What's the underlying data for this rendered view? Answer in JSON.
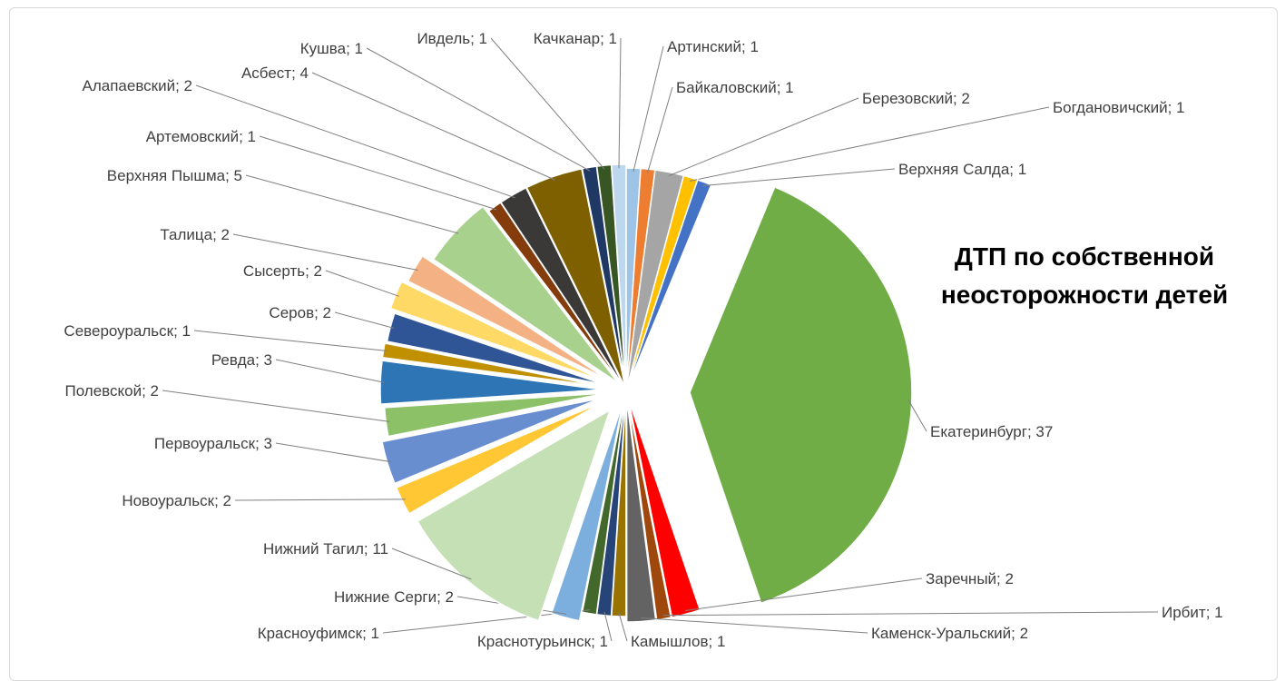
{
  "chart_data": {
    "type": "pie",
    "title_line1": "ДТП по собственной",
    "title_line2": "неосторожности детей",
    "slices": [
      {
        "label": "Артинский",
        "value": 1,
        "color": "#9dc3e6"
      },
      {
        "label": "Байкаловский",
        "value": 1,
        "color": "#ed7d31"
      },
      {
        "label": "Березовский",
        "value": 2,
        "color": "#a5a5a5"
      },
      {
        "label": "Богдановичский",
        "value": 1,
        "color": "#ffc000"
      },
      {
        "label": "Верхняя Салда",
        "value": 1,
        "color": "#4472c4"
      },
      {
        "label": "Екатеринбург",
        "value": 37,
        "color": "#70ad47"
      },
      {
        "label": "Заречный",
        "value": 2,
        "color": "#ff0000"
      },
      {
        "label": "Ирбит",
        "value": 1,
        "color": "#9e480e"
      },
      {
        "label": "Каменск-Уральский",
        "value": 2,
        "color": "#636363"
      },
      {
        "label": "Камышлов",
        "value": 1,
        "color": "#997300"
      },
      {
        "label": "Краснотурьинск",
        "value": 1,
        "color": "#264478"
      },
      {
        "label": "Красноуфимск",
        "value": 1,
        "color": "#43682b"
      },
      {
        "label": "Нижние Серги",
        "value": 2,
        "color": "#7cafdd"
      },
      {
        "label": "Нижний Тагил",
        "value": 11,
        "color": "#c5e0b4"
      },
      {
        "label": "Новоуральск",
        "value": 2,
        "color": "#ffc734"
      },
      {
        "label": "Первоуральск",
        "value": 3,
        "color": "#698ed0"
      },
      {
        "label": "Полевской",
        "value": 2,
        "color": "#8cc168"
      },
      {
        "label": "Ревда",
        "value": 3,
        "color": "#2e75b6"
      },
      {
        "label": "Североуральск",
        "value": 1,
        "color": "#c09000"
      },
      {
        "label": "Серов",
        "value": 2,
        "color": "#2f5597"
      },
      {
        "label": "Сысерть",
        "value": 2,
        "color": "#ffd966"
      },
      {
        "label": "Талица",
        "value": 2,
        "color": "#f4b183"
      },
      {
        "label": "Верхняя Пышма",
        "value": 5,
        "color": "#a9d18e"
      },
      {
        "label": "Артемовский",
        "value": 1,
        "color": "#843c0c"
      },
      {
        "label": "Алапаевский",
        "value": 2,
        "color": "#3b3838"
      },
      {
        "label": "Асбест",
        "value": 4,
        "color": "#7f6000"
      },
      {
        "label": "Кушва",
        "value": 1,
        "color": "#1f3864"
      },
      {
        "label": "Ивдель",
        "value": 1,
        "color": "#375623"
      },
      {
        "label": "Качканар",
        "value": 1,
        "color": "#bdd7ee"
      }
    ],
    "data_labels": [
      "Артинский; 1",
      "Байкаловский; 1",
      "Березовский; 2",
      "Богдановичский; 1",
      "Верхняя Салда; 1",
      "Екатеринбург; 37",
      "Заречный; 2",
      "Ирбит; 1",
      "Каменск-Уральский; 2",
      "Камышлов; 1",
      "Краснотурьинск; 1",
      "Красноуфимск; 1",
      "Нижние Серги; 2",
      "Нижний Тагил; 11",
      "Новоуральск; 2",
      "Первоуральск; 3",
      "Полевской; 2",
      "Ревда; 3",
      "Североуральск; 1",
      "Серов; 2",
      "Сысерть; 2",
      "Талица; 2",
      "Верхняя Пышма; 5",
      "Артемовский; 1",
      "Алапаевский; 2",
      "Асбест; 4",
      "Кушва; 1",
      "Ивдель; 1",
      "Качканар; 1"
    ],
    "legend": "none"
  }
}
